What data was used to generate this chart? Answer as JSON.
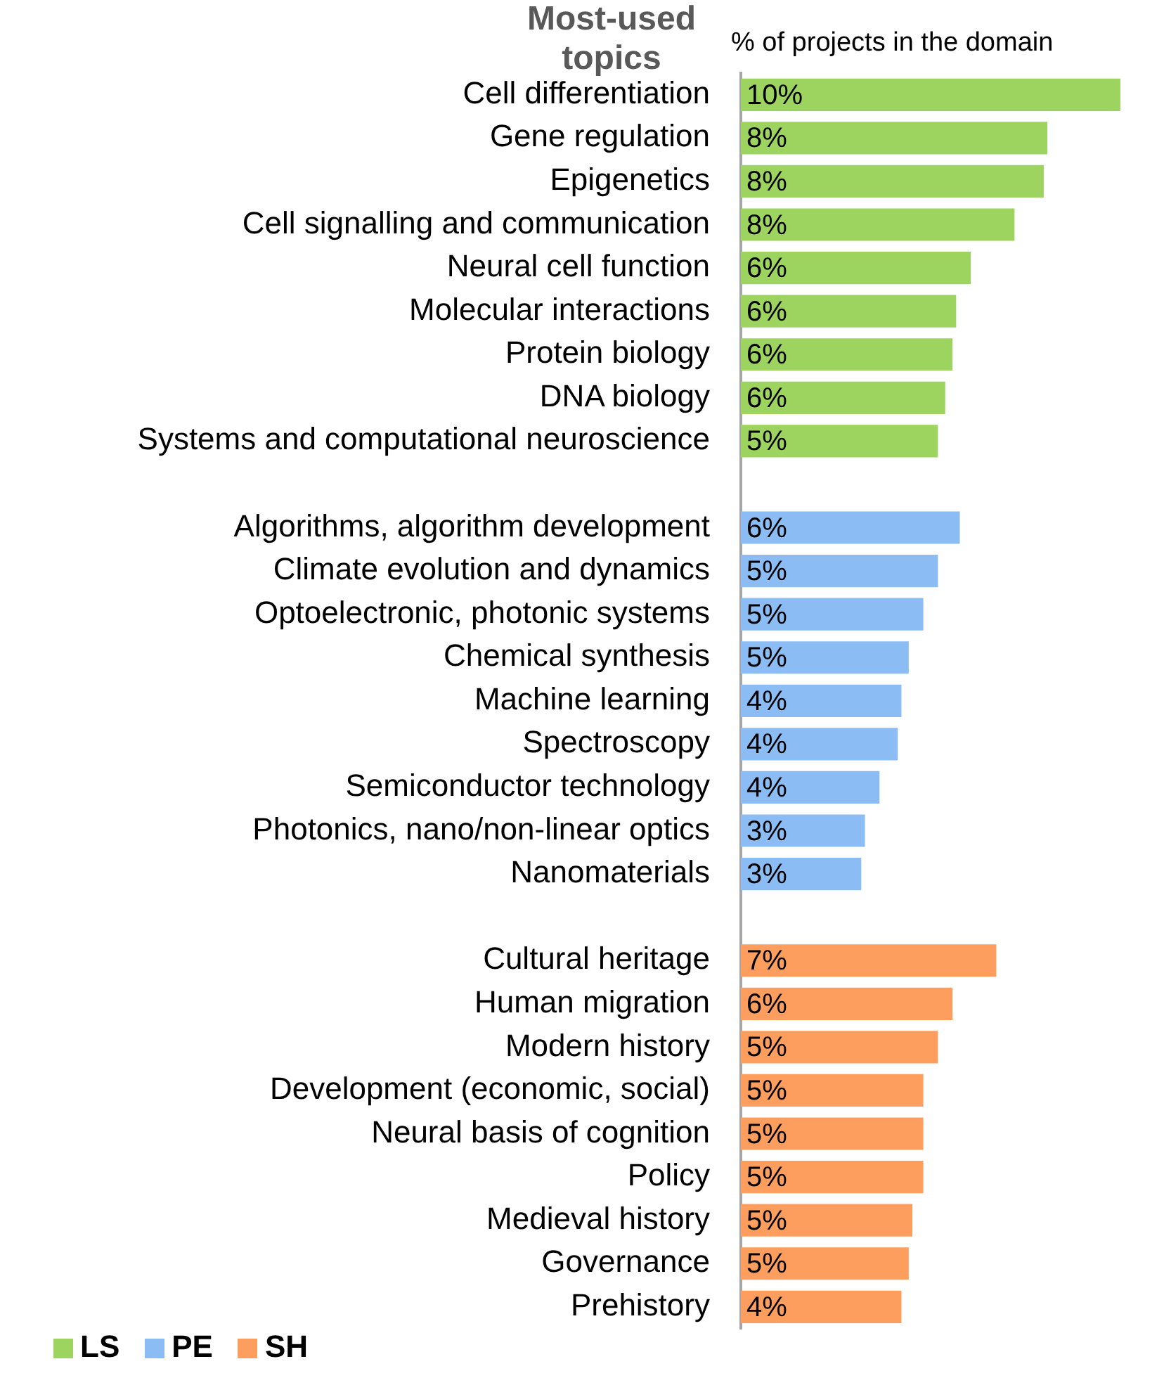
{
  "chart_data": {
    "type": "bar",
    "orientation": "horizontal",
    "stacked": true,
    "title": "Most-used topics",
    "xlabel": "% of projects in the domain",
    "grid": false,
    "legend": "bottom left",
    "categories": [
      "Cell differentiation",
      "Gene regulation",
      "Epigenetics",
      "Cell signalling and communication",
      "Neural cell function",
      "Molecular interactions",
      "Protein biology",
      "DNA biology",
      "Systems and computational neuroscience",
      null,
      "Algorithms, algorithm development",
      "Climate evolution and dynamics",
      "Optoelectronic, photonic systems",
      "Chemical synthesis",
      "Machine learning",
      "Spectroscopy",
      "Semiconductor technology",
      "Photonics, nano/non-linear optics",
      "Nanomaterials",
      null,
      "Cultural heritage",
      "Human migration",
      "Modern history",
      "Development (economic, social)",
      "Neural basis of cognition",
      "Policy",
      "Medieval history",
      "Governance",
      "Prehistory"
    ],
    "series": [
      {
        "name": "LS",
        "color": "#9dd35f",
        "values": [
          10.4,
          8.4,
          8.3,
          7.5,
          6.3,
          5.9,
          5.8,
          5.6,
          5.4,
          null,
          null,
          null,
          null,
          null,
          null,
          null,
          null,
          null,
          null,
          null,
          null,
          null,
          null,
          null,
          null,
          null,
          null,
          null,
          null
        ],
        "value_labels": [
          "10%",
          "8%",
          "8%",
          "8%",
          "6%",
          "6%",
          "6%",
          "6%",
          "5%",
          null,
          null,
          null,
          null,
          null,
          null,
          null,
          null,
          null,
          null,
          null,
          null,
          null,
          null,
          null,
          null,
          null,
          null,
          null,
          null
        ]
      },
      {
        "name": "PE",
        "color": "#8cbcf4",
        "values": [
          null,
          null,
          null,
          null,
          null,
          null,
          null,
          null,
          null,
          null,
          6.0,
          5.4,
          5.0,
          4.6,
          4.4,
          4.3,
          3.8,
          3.4,
          3.3,
          null,
          null,
          null,
          null,
          null,
          null,
          null,
          null,
          null,
          null
        ],
        "value_labels": [
          null,
          null,
          null,
          null,
          null,
          null,
          null,
          null,
          null,
          null,
          "6%",
          "5%",
          "5%",
          "5%",
          "4%",
          "4%",
          "4%",
          "3%",
          "3%",
          null,
          null,
          null,
          null,
          null,
          null,
          null,
          null,
          null,
          null
        ]
      },
      {
        "name": "SH",
        "color": "#fd9d5e",
        "values": [
          null,
          null,
          null,
          null,
          null,
          null,
          null,
          null,
          null,
          null,
          null,
          null,
          null,
          null,
          null,
          null,
          null,
          null,
          null,
          null,
          7.0,
          5.8,
          5.4,
          5.0,
          5.0,
          5.0,
          4.7,
          4.6,
          4.4
        ],
        "value_labels": [
          null,
          null,
          null,
          null,
          null,
          null,
          null,
          null,
          null,
          null,
          null,
          null,
          null,
          null,
          null,
          null,
          null,
          null,
          null,
          null,
          "7%",
          "6%",
          "5%",
          "5%",
          "5%",
          "5%",
          "5%",
          "5%",
          "4%"
        ]
      }
    ]
  }
}
